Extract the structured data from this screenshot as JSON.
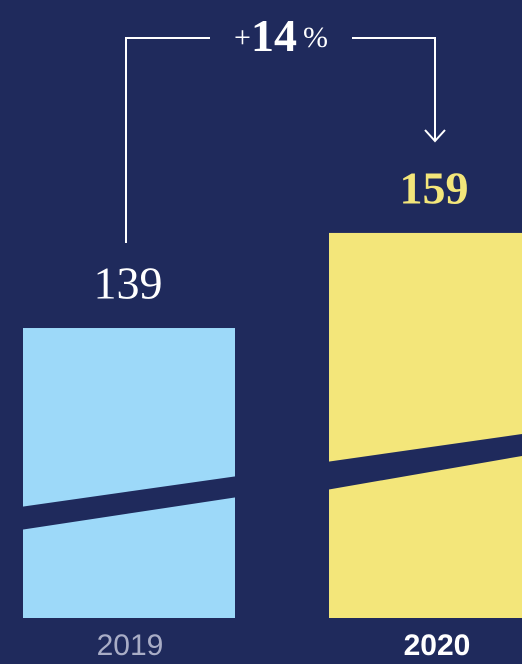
{
  "chart_data": {
    "type": "bar",
    "categories": [
      "2019",
      "2020"
    ],
    "values": [
      139,
      159
    ],
    "colors": [
      "#9dd9f9",
      "#f3e67a"
    ],
    "label_colors": [
      "#ffffff",
      "#f3e67a"
    ],
    "category_colors": [
      "#a9adc6",
      "#ffffff"
    ],
    "ylim": [
      78,
      208
    ],
    "broken_axis": true,
    "annotation": {
      "sign": "+",
      "value": 14,
      "unit": "%"
    }
  }
}
